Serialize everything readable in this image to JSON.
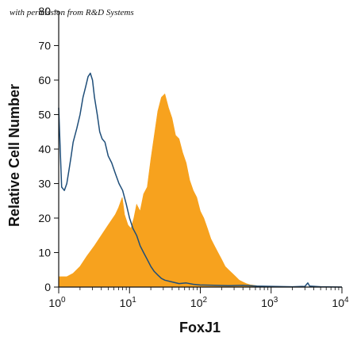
{
  "chart_data": {
    "type": "area",
    "title": "",
    "credit": "with permission from R&D Systems",
    "xlabel": "FoxJ1",
    "ylabel": "Relative Cell Number",
    "xscale": "log",
    "xlim": [
      1,
      10000
    ],
    "ylim": [
      0,
      80
    ],
    "yticks": [
      0,
      10,
      20,
      30,
      40,
      50,
      60,
      70,
      80
    ],
    "xticks": [
      {
        "value": 1,
        "base": "10",
        "exp": "0"
      },
      {
        "value": 10,
        "base": "10",
        "exp": "1"
      },
      {
        "value": 100,
        "base": "10",
        "exp": "2"
      },
      {
        "value": 1000,
        "base": "10",
        "exp": "3"
      },
      {
        "value": 10000,
        "base": "10",
        "exp": "4"
      }
    ],
    "series": [
      {
        "style": "filled",
        "color": "#f7a21e",
        "points": [
          [
            1.0,
            3
          ],
          [
            1.3,
            3
          ],
          [
            1.6,
            4
          ],
          [
            2.0,
            6
          ],
          [
            2.5,
            9
          ],
          [
            3.2,
            12
          ],
          [
            4.0,
            15
          ],
          [
            5.0,
            18
          ],
          [
            6.3,
            21
          ],
          [
            7.0,
            23
          ],
          [
            7.9,
            26
          ],
          [
            8.5,
            21
          ],
          [
            9.5,
            18
          ],
          [
            10.5,
            17
          ],
          [
            11.5,
            20
          ],
          [
            12.6,
            24
          ],
          [
            14.1,
            22
          ],
          [
            15.8,
            27
          ],
          [
            17.8,
            29
          ],
          [
            20.0,
            37
          ],
          [
            22.4,
            44
          ],
          [
            25.1,
            51
          ],
          [
            28.2,
            55
          ],
          [
            31.6,
            56
          ],
          [
            35.5,
            52
          ],
          [
            39.8,
            49
          ],
          [
            44.7,
            44
          ],
          [
            50.1,
            43
          ],
          [
            56.2,
            39
          ],
          [
            63.1,
            36
          ],
          [
            70.8,
            31
          ],
          [
            79.4,
            28
          ],
          [
            89.1,
            26
          ],
          [
            100,
            22
          ],
          [
            112,
            20
          ],
          [
            126,
            17
          ],
          [
            141,
            14
          ],
          [
            158,
            12
          ],
          [
            178,
            10
          ],
          [
            200,
            8
          ],
          [
            224,
            6
          ],
          [
            251,
            5
          ],
          [
            282,
            4
          ],
          [
            316,
            3
          ],
          [
            355,
            2
          ],
          [
            398,
            1.5
          ],
          [
            447,
            1
          ],
          [
            501,
            0.7
          ],
          [
            631,
            0.4
          ],
          [
            794,
            0.2
          ],
          [
            1000,
            0.1
          ],
          [
            10000,
            0
          ]
        ]
      },
      {
        "style": "outline",
        "color": "#1f4e79",
        "points": [
          [
            1.0,
            52
          ],
          [
            1.05,
            40
          ],
          [
            1.1,
            29
          ],
          [
            1.2,
            28
          ],
          [
            1.3,
            30
          ],
          [
            1.4,
            34
          ],
          [
            1.5,
            38
          ],
          [
            1.6,
            42
          ],
          [
            1.8,
            46
          ],
          [
            2.0,
            50
          ],
          [
            2.2,
            55
          ],
          [
            2.4,
            58
          ],
          [
            2.6,
            61
          ],
          [
            2.8,
            62
          ],
          [
            3.0,
            60
          ],
          [
            3.2,
            55
          ],
          [
            3.5,
            50
          ],
          [
            3.8,
            45
          ],
          [
            4.1,
            43
          ],
          [
            4.5,
            42
          ],
          [
            5.0,
            38
          ],
          [
            5.6,
            36
          ],
          [
            6.3,
            33
          ],
          [
            7.1,
            30
          ],
          [
            8.0,
            28
          ],
          [
            9.0,
            24
          ],
          [
            10.0,
            20
          ],
          [
            11.2,
            17
          ],
          [
            12.6,
            15
          ],
          [
            14.1,
            12
          ],
          [
            15.8,
            10
          ],
          [
            17.8,
            8
          ],
          [
            20.0,
            6
          ],
          [
            22.4,
            4.5
          ],
          [
            25.1,
            3.5
          ],
          [
            28.2,
            2.5
          ],
          [
            31.6,
            2
          ],
          [
            39.8,
            1.5
          ],
          [
            50.1,
            1
          ],
          [
            63.1,
            1.2
          ],
          [
            79.4,
            0.8
          ],
          [
            100,
            0.6
          ],
          [
            158,
            0.5
          ],
          [
            251,
            0.4
          ],
          [
            398,
            0.5
          ],
          [
            631,
            0.3
          ],
          [
            1000,
            0.2
          ],
          [
            2000,
            0.1
          ],
          [
            3000,
            0.2
          ],
          [
            3300,
            1.2
          ],
          [
            3500,
            0.3
          ],
          [
            5000,
            0.1
          ],
          [
            10000,
            0
          ]
        ]
      }
    ]
  }
}
